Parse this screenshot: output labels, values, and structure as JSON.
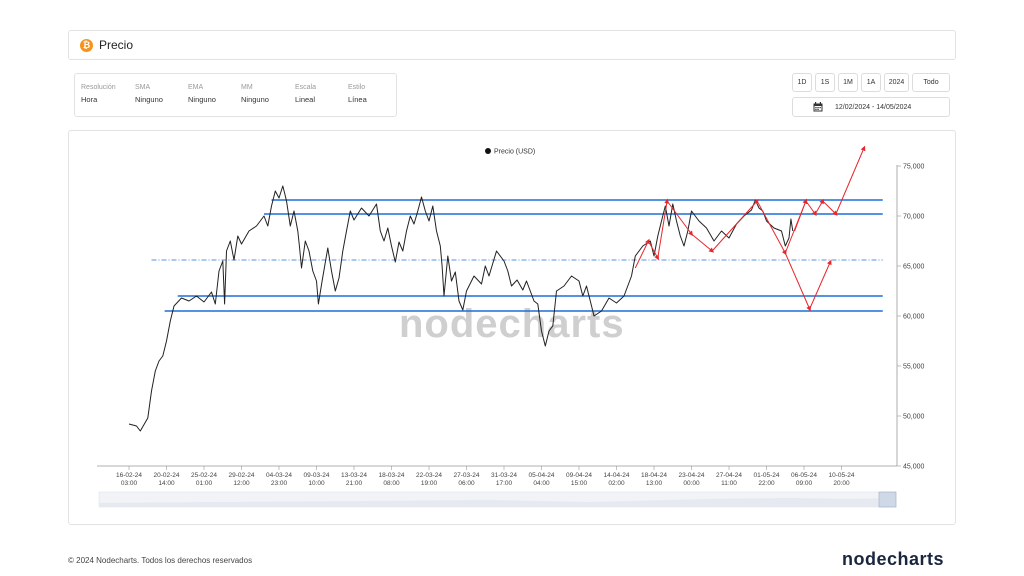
{
  "header": {
    "title": "Precio",
    "icon": "bitcoin-icon"
  },
  "settings": [
    {
      "label": "Resolución",
      "value": "Hora"
    },
    {
      "label": "SMA",
      "value": "Ninguno"
    },
    {
      "label": "EMA",
      "value": "Ninguno"
    },
    {
      "label": "MM",
      "value": "Ninguno"
    },
    {
      "label": "Escala",
      "value": "Lineal"
    },
    {
      "label": "Estilo",
      "value": "Línea"
    }
  ],
  "ranges": [
    "1D",
    "1S",
    "1M",
    "1A",
    "2024",
    "Todo"
  ],
  "date_range": "12/02/2024 - 14/05/2024",
  "watermark": "nodecharts",
  "footer": {
    "copyright": "© 2024 Nodecharts. Todos los derechos reservados",
    "brand": "nodecharts"
  },
  "colors": {
    "price_line": "#222222",
    "level_line": "#1e6fd9",
    "projection": "#e8262b",
    "bitcoin": "#f7931a"
  },
  "chart_data": {
    "type": "line",
    "legend": "Precio (USD)",
    "legend_position": "top-center",
    "y_axis_position": "right",
    "ylim": [
      45000,
      77000
    ],
    "y_ticks": [
      {
        "value": 45000,
        "label": "45,000"
      },
      {
        "value": 50000,
        "label": "50,000"
      },
      {
        "value": 55000,
        "label": "55,000"
      },
      {
        "value": 60000,
        "label": "60,000"
      },
      {
        "value": 65000,
        "label": "65,000"
      },
      {
        "value": 70000,
        "label": "70,000"
      },
      {
        "value": 75000,
        "label": "75,000"
      }
    ],
    "x_ticks": [
      [
        "16-02-24",
        "03:00"
      ],
      [
        "20-02-24",
        "14:00"
      ],
      [
        "25-02-24",
        "01:00"
      ],
      [
        "29-02-24",
        "12:00"
      ],
      [
        "04-03-24",
        "23:00"
      ],
      [
        "09-03-24",
        "10:00"
      ],
      [
        "13-03-24",
        "21:00"
      ],
      [
        "18-03-24",
        "08:00"
      ],
      [
        "22-03-24",
        "19:00"
      ],
      [
        "27-03-24",
        "06:00"
      ],
      [
        "31-03-24",
        "17:00"
      ],
      [
        "05-04-24",
        "04:00"
      ],
      [
        "09-04-24",
        "15:00"
      ],
      [
        "14-04-24",
        "02:00"
      ],
      [
        "18-04-24",
        "13:00"
      ],
      [
        "23-04-24",
        "00:00"
      ],
      [
        "27-04-24",
        "11:00"
      ],
      [
        "01-05-24",
        "22:00"
      ],
      [
        "06-05-24",
        "09:00"
      ],
      [
        "10-05-24",
        "20:00"
      ]
    ],
    "series": [
      {
        "name": "Precio (USD)",
        "points": [
          [
            0.0,
            49200
          ],
          [
            0.2,
            49000
          ],
          [
            0.3,
            48500
          ],
          [
            0.5,
            49800
          ],
          [
            0.6,
            52500
          ],
          [
            0.7,
            54500
          ],
          [
            0.8,
            55500
          ],
          [
            0.9,
            56000
          ],
          [
            1.0,
            57500
          ],
          [
            1.1,
            59500
          ],
          [
            1.2,
            61000
          ],
          [
            1.4,
            61800
          ],
          [
            1.6,
            61500
          ],
          [
            1.8,
            62000
          ],
          [
            2.0,
            61400
          ],
          [
            2.2,
            62400
          ],
          [
            2.3,
            61200
          ],
          [
            2.4,
            64500
          ],
          [
            2.5,
            65500
          ],
          [
            2.55,
            61200
          ],
          [
            2.6,
            66500
          ],
          [
            2.7,
            67500
          ],
          [
            2.8,
            65600
          ],
          [
            2.9,
            68000
          ],
          [
            3.0,
            67200
          ],
          [
            3.2,
            68500
          ],
          [
            3.4,
            69000
          ],
          [
            3.6,
            70000
          ],
          [
            3.7,
            69000
          ],
          [
            3.8,
            71000
          ],
          [
            3.9,
            72500
          ],
          [
            4.0,
            71800
          ],
          [
            4.1,
            73000
          ],
          [
            4.15,
            72300
          ],
          [
            4.2,
            71500
          ],
          [
            4.3,
            69000
          ],
          [
            4.4,
            70500
          ],
          [
            4.5,
            68500
          ],
          [
            4.55,
            66800
          ],
          [
            4.6,
            64800
          ],
          [
            4.7,
            67500
          ],
          [
            4.8,
            66500
          ],
          [
            4.9,
            64500
          ],
          [
            5.0,
            63500
          ],
          [
            5.05,
            61200
          ],
          [
            5.15,
            63500
          ],
          [
            5.3,
            66800
          ],
          [
            5.4,
            64500
          ],
          [
            5.5,
            62500
          ],
          [
            5.6,
            63800
          ],
          [
            5.7,
            66500
          ],
          [
            5.8,
            68500
          ],
          [
            5.9,
            70500
          ],
          [
            6.0,
            69600
          ],
          [
            6.2,
            70800
          ],
          [
            6.4,
            70000
          ],
          [
            6.6,
            71200
          ],
          [
            6.7,
            68500
          ],
          [
            6.8,
            67500
          ],
          [
            6.9,
            68800
          ],
          [
            7.0,
            67000
          ],
          [
            7.1,
            65400
          ],
          [
            7.2,
            67400
          ],
          [
            7.3,
            66500
          ],
          [
            7.4,
            68500
          ],
          [
            7.5,
            70000
          ],
          [
            7.6,
            69200
          ],
          [
            7.7,
            70500
          ],
          [
            7.8,
            71900
          ],
          [
            7.9,
            70500
          ],
          [
            8.0,
            69500
          ],
          [
            8.1,
            71000
          ],
          [
            8.2,
            68500
          ],
          [
            8.3,
            67000
          ],
          [
            8.35,
            65000
          ],
          [
            8.4,
            62000
          ],
          [
            8.5,
            66000
          ],
          [
            8.6,
            63500
          ],
          [
            8.7,
            64400
          ],
          [
            8.8,
            61500
          ],
          [
            8.9,
            60600
          ],
          [
            9.0,
            62500
          ],
          [
            9.2,
            64000
          ],
          [
            9.4,
            63200
          ],
          [
            9.5,
            65000
          ],
          [
            9.6,
            64000
          ],
          [
            9.8,
            66500
          ],
          [
            10.0,
            65500
          ],
          [
            10.1,
            64500
          ],
          [
            10.2,
            63000
          ],
          [
            10.35,
            63600
          ],
          [
            10.5,
            62600
          ],
          [
            10.6,
            63500
          ],
          [
            10.8,
            61500
          ],
          [
            10.9,
            61200
          ],
          [
            11.0,
            58500
          ],
          [
            11.1,
            57000
          ],
          [
            11.2,
            58500
          ],
          [
            11.3,
            59000
          ],
          [
            11.4,
            62500
          ],
          [
            11.6,
            63000
          ],
          [
            11.8,
            64000
          ],
          [
            12.0,
            63500
          ],
          [
            12.1,
            62000
          ],
          [
            12.2,
            63000
          ],
          [
            12.3,
            61500
          ],
          [
            12.4,
            60000
          ],
          [
            12.6,
            60500
          ],
          [
            12.8,
            61800
          ],
          [
            13.0,
            61300
          ],
          [
            13.2,
            62000
          ],
          [
            13.4,
            64000
          ],
          [
            13.5,
            66000
          ],
          [
            13.7,
            67000
          ],
          [
            13.9,
            67500
          ],
          [
            14.0,
            66000
          ],
          [
            14.1,
            68000
          ],
          [
            14.2,
            69500
          ],
          [
            14.3,
            71000
          ],
          [
            14.4,
            69000
          ],
          [
            14.5,
            71200
          ],
          [
            14.6,
            69500
          ],
          [
            14.7,
            68000
          ],
          [
            14.8,
            67000
          ],
          [
            14.9,
            68500
          ],
          [
            15.0,
            70500
          ],
          [
            15.2,
            69500
          ],
          [
            15.4,
            68800
          ],
          [
            15.6,
            67500
          ],
          [
            15.8,
            68500
          ],
          [
            16.0,
            67800
          ],
          [
            16.2,
            69200
          ],
          [
            16.4,
            70000
          ],
          [
            16.6,
            70600
          ],
          [
            16.7,
            71600
          ],
          [
            16.8,
            70800
          ],
          [
            16.9,
            70500
          ],
          [
            17.0,
            69500
          ],
          [
            17.2,
            68800
          ],
          [
            17.4,
            68500
          ],
          [
            17.5,
            67000
          ],
          [
            17.6,
            67800
          ],
          [
            17.65,
            69700
          ],
          [
            17.7,
            68500
          ]
        ]
      }
    ],
    "horizontal_levels": [
      {
        "value": 71600,
        "x_start": 3.8,
        "x_end": 20.1
      },
      {
        "value": 70200,
        "x_start": 3.6,
        "x_end": 20.1
      },
      {
        "value": 62000,
        "x_start": 1.3,
        "x_end": 20.1
      },
      {
        "value": 60500,
        "x_start": 0.95,
        "x_end": 20.1
      }
    ],
    "dashed_levels": [
      {
        "value": 65600,
        "x_start": 0.6,
        "x_end": 20.1
      }
    ],
    "projections": [
      {
        "points": [
          [
            13.5,
            64800
          ],
          [
            13.85,
            67500
          ],
          [
            14.1,
            65800
          ],
          [
            14.35,
            71500
          ],
          [
            15.0,
            68200
          ],
          [
            15.55,
            66500
          ],
          [
            16.75,
            71500
          ],
          [
            17.5,
            66300
          ],
          [
            18.05,
            71500
          ]
        ]
      },
      {
        "points": [
          [
            17.75,
            68500
          ],
          [
            18.05,
            71500
          ],
          [
            18.3,
            70200
          ],
          [
            18.5,
            71500
          ],
          [
            18.85,
            70200
          ],
          [
            19.6,
            76800
          ]
        ]
      },
      {
        "points": [
          [
            17.5,
            66300
          ],
          [
            18.15,
            60700
          ],
          [
            18.7,
            65400
          ]
        ]
      }
    ]
  }
}
